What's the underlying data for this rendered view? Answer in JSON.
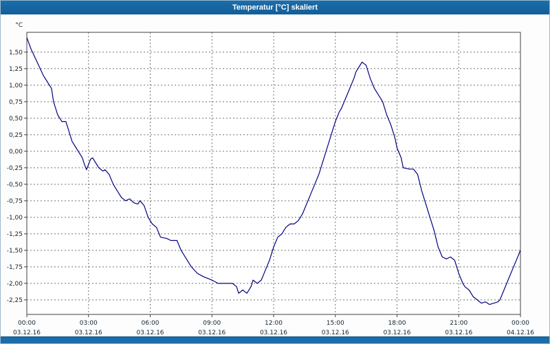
{
  "window": {
    "title": "Temperatur [°C] skaliert"
  },
  "colors": {
    "titlebar": "#1b6dab",
    "line": "#000080",
    "grid": "#707070",
    "border": "#404040",
    "plot_bg": "#ffffff"
  },
  "chart_data": {
    "type": "line",
    "title": "Temperatur [°C] skaliert",
    "xlabel": "",
    "ylabel": "°C",
    "legend": "none",
    "grid": true,
    "ylim": [
      -2.47,
      1.8
    ],
    "xlim_hours": [
      0,
      24
    ],
    "y_ticks": [
      {
        "value": 1.5,
        "label": "1,50"
      },
      {
        "value": 1.25,
        "label": "1,25"
      },
      {
        "value": 1.0,
        "label": "1,00"
      },
      {
        "value": 0.75,
        "label": "0,75"
      },
      {
        "value": 0.5,
        "label": "0,50"
      },
      {
        "value": 0.25,
        "label": "0,25"
      },
      {
        "value": 0.0,
        "label": "0,00"
      },
      {
        "value": -0.25,
        "label": "-0,25"
      },
      {
        "value": -0.5,
        "label": "-0,50"
      },
      {
        "value": -0.75,
        "label": "-0,75"
      },
      {
        "value": -1.0,
        "label": "-1,00"
      },
      {
        "value": -1.25,
        "label": "-1,25"
      },
      {
        "value": -1.5,
        "label": "-1,50"
      },
      {
        "value": -1.75,
        "label": "-1,75"
      },
      {
        "value": -2.0,
        "label": "-2,00"
      },
      {
        "value": -2.25,
        "label": "-2,25"
      }
    ],
    "x_ticks": [
      {
        "hour": 0,
        "time": "00:00",
        "date": "03.12.16"
      },
      {
        "hour": 3,
        "time": "03:00",
        "date": "03.12.16"
      },
      {
        "hour": 6,
        "time": "06:00",
        "date": "03.12.16"
      },
      {
        "hour": 9,
        "time": "09:00",
        "date": "03.12.16"
      },
      {
        "hour": 12,
        "time": "12:00",
        "date": "03.12.16"
      },
      {
        "hour": 15,
        "time": "15:00",
        "date": "03.12.16"
      },
      {
        "hour": 18,
        "time": "18:00",
        "date": "03.12.16"
      },
      {
        "hour": 21,
        "time": "21:00",
        "date": "03.12.16"
      },
      {
        "hour": 24,
        "time": "00:00",
        "date": "04.12.16"
      }
    ],
    "series": [
      {
        "name": "Temperatur",
        "points": [
          [
            0.0,
            1.72
          ],
          [
            0.2,
            1.55
          ],
          [
            0.5,
            1.35
          ],
          [
            0.8,
            1.15
          ],
          [
            1.0,
            1.05
          ],
          [
            1.2,
            0.95
          ],
          [
            1.3,
            0.75
          ],
          [
            1.5,
            0.55
          ],
          [
            1.7,
            0.45
          ],
          [
            1.9,
            0.45
          ],
          [
            2.0,
            0.35
          ],
          [
            2.2,
            0.15
          ],
          [
            2.4,
            0.05
          ],
          [
            2.5,
            0.0
          ],
          [
            2.7,
            -0.1
          ],
          [
            2.8,
            -0.2
          ],
          [
            2.9,
            -0.28
          ],
          [
            3.0,
            -0.2
          ],
          [
            3.1,
            -0.12
          ],
          [
            3.2,
            -0.1
          ],
          [
            3.4,
            -0.2
          ],
          [
            3.5,
            -0.25
          ],
          [
            3.7,
            -0.3
          ],
          [
            3.8,
            -0.28
          ],
          [
            4.0,
            -0.35
          ],
          [
            4.2,
            -0.5
          ],
          [
            4.4,
            -0.6
          ],
          [
            4.6,
            -0.7
          ],
          [
            4.8,
            -0.75
          ],
          [
            5.0,
            -0.72
          ],
          [
            5.2,
            -0.78
          ],
          [
            5.4,
            -0.8
          ],
          [
            5.5,
            -0.75
          ],
          [
            5.7,
            -0.82
          ],
          [
            5.9,
            -1.0
          ],
          [
            6.1,
            -1.1
          ],
          [
            6.3,
            -1.15
          ],
          [
            6.5,
            -1.3
          ],
          [
            6.8,
            -1.32
          ],
          [
            7.0,
            -1.35
          ],
          [
            7.3,
            -1.35
          ],
          [
            7.5,
            -1.5
          ],
          [
            7.8,
            -1.65
          ],
          [
            8.0,
            -1.75
          ],
          [
            8.3,
            -1.85
          ],
          [
            8.6,
            -1.9
          ],
          [
            9.0,
            -1.95
          ],
          [
            9.3,
            -2.0
          ],
          [
            9.6,
            -2.0
          ],
          [
            10.0,
            -2.0
          ],
          [
            10.2,
            -2.05
          ],
          [
            10.3,
            -2.15
          ],
          [
            10.5,
            -2.1
          ],
          [
            10.7,
            -2.15
          ],
          [
            10.9,
            -2.05
          ],
          [
            11.0,
            -1.95
          ],
          [
            11.2,
            -2.0
          ],
          [
            11.4,
            -1.95
          ],
          [
            11.6,
            -1.8
          ],
          [
            11.8,
            -1.65
          ],
          [
            12.0,
            -1.45
          ],
          [
            12.2,
            -1.3
          ],
          [
            12.4,
            -1.25
          ],
          [
            12.6,
            -1.15
          ],
          [
            12.8,
            -1.1
          ],
          [
            13.0,
            -1.1
          ],
          [
            13.2,
            -1.05
          ],
          [
            13.4,
            -0.95
          ],
          [
            13.6,
            -0.8
          ],
          [
            13.8,
            -0.65
          ],
          [
            14.0,
            -0.5
          ],
          [
            14.2,
            -0.35
          ],
          [
            14.4,
            -0.15
          ],
          [
            14.6,
            0.05
          ],
          [
            14.8,
            0.25
          ],
          [
            15.0,
            0.45
          ],
          [
            15.2,
            0.6
          ],
          [
            15.3,
            0.65
          ],
          [
            15.5,
            0.8
          ],
          [
            15.7,
            0.95
          ],
          [
            15.9,
            1.1
          ],
          [
            16.0,
            1.2
          ],
          [
            16.2,
            1.3
          ],
          [
            16.3,
            1.35
          ],
          [
            16.5,
            1.3
          ],
          [
            16.7,
            1.1
          ],
          [
            16.9,
            0.95
          ],
          [
            17.1,
            0.85
          ],
          [
            17.3,
            0.75
          ],
          [
            17.5,
            0.55
          ],
          [
            17.7,
            0.4
          ],
          [
            17.9,
            0.2
          ],
          [
            18.0,
            0.05
          ],
          [
            18.2,
            -0.1
          ],
          [
            18.3,
            -0.25
          ],
          [
            18.6,
            -0.27
          ],
          [
            18.8,
            -0.27
          ],
          [
            19.0,
            -0.35
          ],
          [
            19.2,
            -0.6
          ],
          [
            19.4,
            -0.8
          ],
          [
            19.6,
            -1.0
          ],
          [
            19.8,
            -1.2
          ],
          [
            20.0,
            -1.45
          ],
          [
            20.2,
            -1.6
          ],
          [
            20.4,
            -1.63
          ],
          [
            20.6,
            -1.6
          ],
          [
            20.8,
            -1.65
          ],
          [
            21.0,
            -1.85
          ],
          [
            21.2,
            -2.0
          ],
          [
            21.3,
            -2.05
          ],
          [
            21.5,
            -2.1
          ],
          [
            21.7,
            -2.2
          ],
          [
            21.9,
            -2.25
          ],
          [
            22.1,
            -2.3
          ],
          [
            22.3,
            -2.28
          ],
          [
            22.5,
            -2.32
          ],
          [
            22.7,
            -2.3
          ],
          [
            22.9,
            -2.28
          ],
          [
            23.0,
            -2.25
          ],
          [
            23.2,
            -2.1
          ],
          [
            23.4,
            -1.95
          ],
          [
            23.6,
            -1.8
          ],
          [
            23.8,
            -1.65
          ],
          [
            24.0,
            -1.5
          ]
        ]
      }
    ]
  }
}
